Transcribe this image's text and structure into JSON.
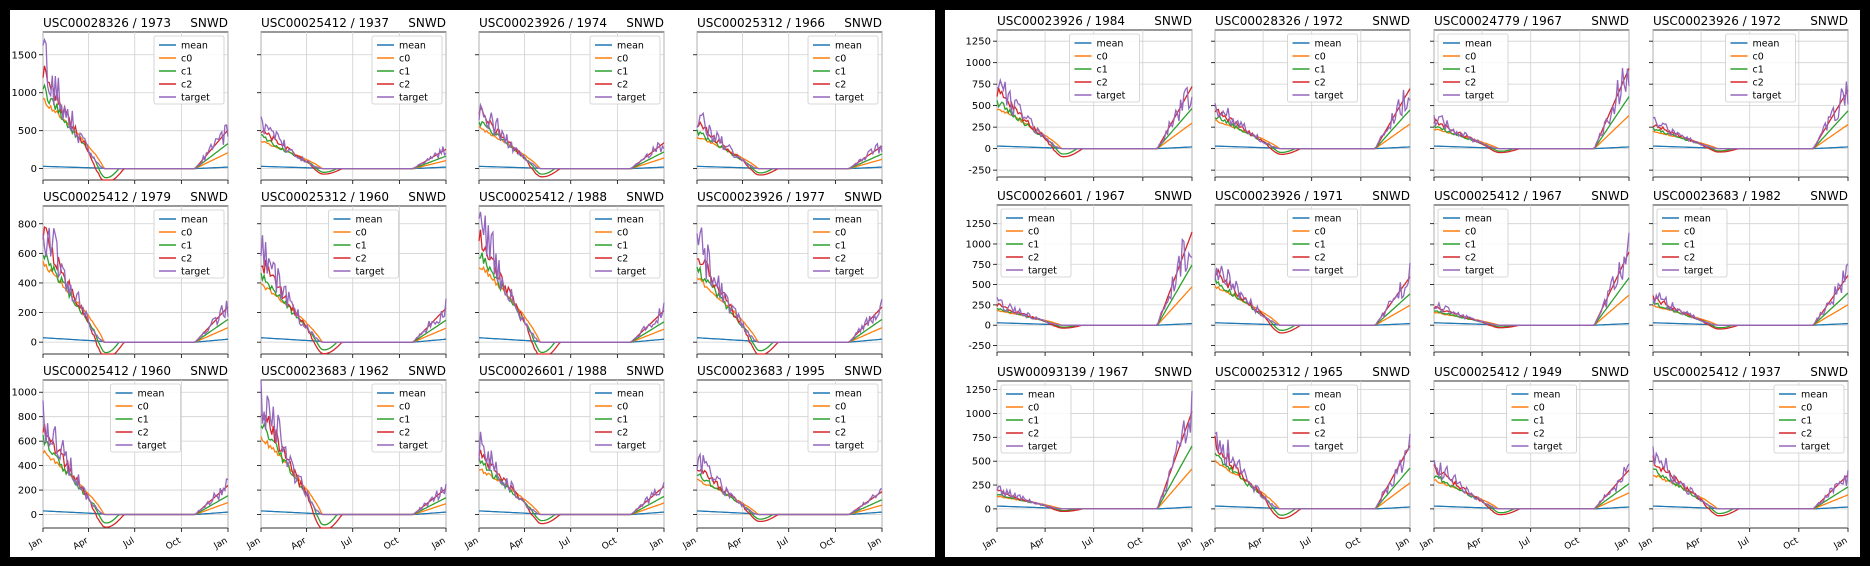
{
  "months": [
    "Jan",
    "Apr",
    "Jul",
    "Oct",
    "Jan"
  ],
  "colors": {
    "mean": "#1f77b4",
    "c0": "#ff7f0e",
    "c1": "#2ca02c",
    "c2": "#d62728",
    "target": "#9467bd"
  },
  "legend": [
    "mean",
    "c0",
    "c1",
    "c2",
    "target"
  ],
  "chart_data": [
    {
      "figure": "left",
      "type": "line",
      "variable": "SNWD",
      "x_ticks": [
        "Jan",
        "Apr",
        "Jul",
        "Oct",
        "Jan"
      ],
      "rows": [
        {
          "yticks": [
            0,
            500,
            1000,
            1500
          ],
          "ylim": [
            -150,
            1800
          ]
        },
        {
          "yticks": [
            0,
            200,
            400,
            600,
            800
          ],
          "ylim": [
            -80,
            920
          ]
        },
        {
          "yticks": [
            0,
            200,
            400,
            600,
            800,
            1000
          ],
          "ylim": [
            -110,
            1100
          ]
        }
      ],
      "subplots": [
        {
          "title": "USC00028326 / 1973",
          "legend_pos": "top-right",
          "early_peak": 1500,
          "late_peak": 600
        },
        {
          "title": "USC00025412 / 1937",
          "legend_pos": "top-right",
          "early_peak": 600,
          "late_peak": 300
        },
        {
          "title": "USC00023926 / 1974",
          "legend_pos": "top-right",
          "early_peak": 900,
          "late_peak": 400
        },
        {
          "title": "USC00025312 / 1966",
          "legend_pos": "top-right",
          "early_peak": 700,
          "late_peak": 350
        },
        {
          "title": "USC00025412 / 1979",
          "legend_pos": "top-right",
          "early_peak": 880,
          "late_peak": 280
        },
        {
          "title": "USC00025312 / 1960",
          "legend_pos": "top-center",
          "early_peak": 650,
          "late_peak": 270
        },
        {
          "title": "USC00025412 / 1988",
          "legend_pos": "top-right",
          "early_peak": 870,
          "late_peak": 250
        },
        {
          "title": "USC00023926 / 1977",
          "legend_pos": "top-right",
          "early_peak": 720,
          "late_peak": 280
        },
        {
          "title": "USC00025412 / 1960",
          "legend_pos": "top-center",
          "early_peak": 860,
          "late_peak": 280
        },
        {
          "title": "USC00023683 / 1962",
          "legend_pos": "top-right",
          "early_peak": 1050,
          "late_peak": 250
        },
        {
          "title": "USC00026601 / 1988",
          "legend_pos": "top-right",
          "early_peak": 620,
          "late_peak": 270
        },
        {
          "title": "USC00023683 / 1995",
          "legend_pos": "top-right",
          "early_peak": 470,
          "late_peak": 220
        }
      ]
    },
    {
      "figure": "right",
      "type": "line",
      "variable": "SNWD",
      "x_ticks": [
        "Jan",
        "Apr",
        "Jul",
        "Oct",
        "Jan"
      ],
      "rows": [
        {
          "yticks": [
            -250,
            0,
            250,
            500,
            750,
            1000,
            1250
          ],
          "ylim": [
            -330,
            1380
          ]
        },
        {
          "yticks": [
            -250,
            0,
            250,
            500,
            750,
            1000,
            1250
          ],
          "ylim": [
            -330,
            1480
          ]
        },
        {
          "yticks": [
            0,
            250,
            500,
            750,
            1000,
            1250
          ],
          "ylim": [
            -200,
            1340
          ]
        }
      ],
      "subplots": [
        {
          "title": "USC00023926 / 1984",
          "legend_pos": "top-center",
          "early_peak": 780,
          "late_peak": 850
        },
        {
          "title": "USC00028326 / 1972",
          "legend_pos": "top-center",
          "early_peak": 550,
          "late_peak": 820
        },
        {
          "title": "USC00024779 / 1967",
          "legend_pos": "top-left",
          "early_peak": 380,
          "late_peak": 1100
        },
        {
          "title": "USC00023926 / 1972",
          "legend_pos": "top-center",
          "early_peak": 330,
          "late_peak": 800
        },
        {
          "title": "USC00026601 / 1967",
          "legend_pos": "top-left",
          "early_peak": 300,
          "late_peak": 1350
        },
        {
          "title": "USC00023926 / 1971",
          "legend_pos": "top-center",
          "early_peak": 790,
          "late_peak": 700
        },
        {
          "title": "USC00025412 / 1967",
          "legend_pos": "top-left",
          "early_peak": 260,
          "late_peak": 1060
        },
        {
          "title": "USC00023683 / 1982",
          "legend_pos": "top-left",
          "early_peak": 390,
          "late_peak": 720
        },
        {
          "title": "USW00093139 / 1967",
          "legend_pos": "top-left",
          "early_peak": 220,
          "late_peak": 1200
        },
        {
          "title": "USC00025312 / 1965",
          "legend_pos": "top-center",
          "early_peak": 820,
          "late_peak": 780
        },
        {
          "title": "USC00025412 / 1949",
          "legend_pos": "top-center",
          "early_peak": 500,
          "late_peak": 480
        },
        {
          "title": "USC00025412 / 1937",
          "legend_pos": "top-right",
          "early_peak": 600,
          "late_peak": 420
        }
      ]
    }
  ]
}
